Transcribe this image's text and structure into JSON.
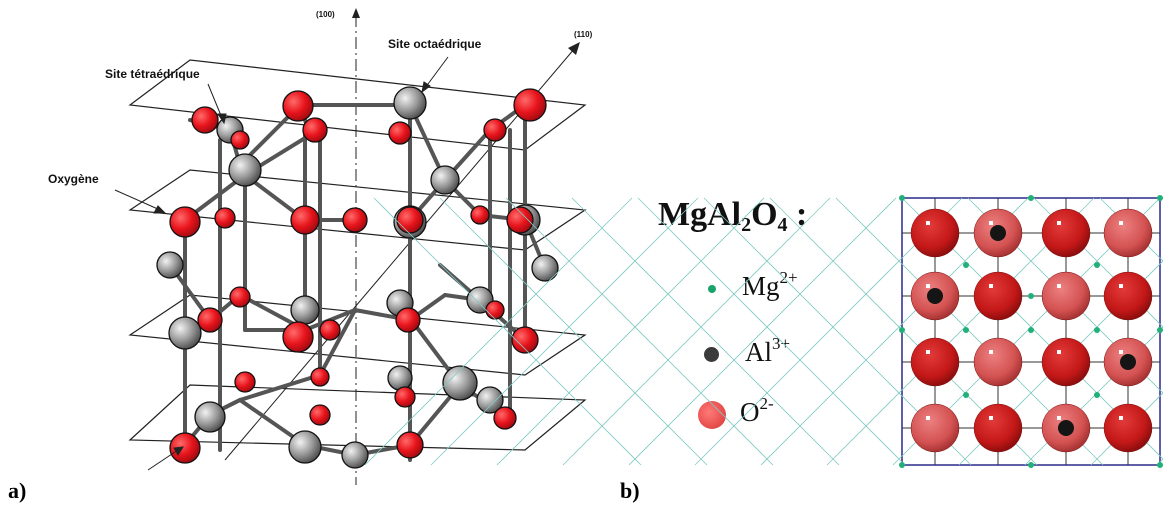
{
  "figure": {
    "panel_a": {
      "label": "a)",
      "annotations": {
        "axis_100": "(100)",
        "axis_110": "(110)",
        "site_octa": "Site octaédrique",
        "site_tetra": "Site tétraédrique",
        "oxygene": "Oxygène"
      }
    },
    "panel_b": {
      "label": "b)",
      "formula": {
        "main": "MgAl",
        "sub1": "2",
        "mid": "O",
        "sub2": "4",
        "colon": " :"
      },
      "legend": [
        {
          "ion": "Mg",
          "charge": "2+",
          "color": "#1aa36a",
          "icon": "mg-dot-icon"
        },
        {
          "ion": "Al",
          "charge": "3+",
          "color": "#3b3b3b",
          "icon": "al-dot-icon"
        },
        {
          "ion": "O",
          "charge": "2-",
          "color": "#e8504e",
          "icon": "o-dot-icon"
        }
      ],
      "lattice": {
        "grid": "4x4",
        "al_positions": [
          "row1-col2",
          "row2-col1",
          "row3-col4",
          "row4-col3"
        ],
        "o_color_dark": "#c81e1e",
        "o_color_light": "#d95a5a",
        "mg_color": "#22b07a"
      }
    }
  }
}
